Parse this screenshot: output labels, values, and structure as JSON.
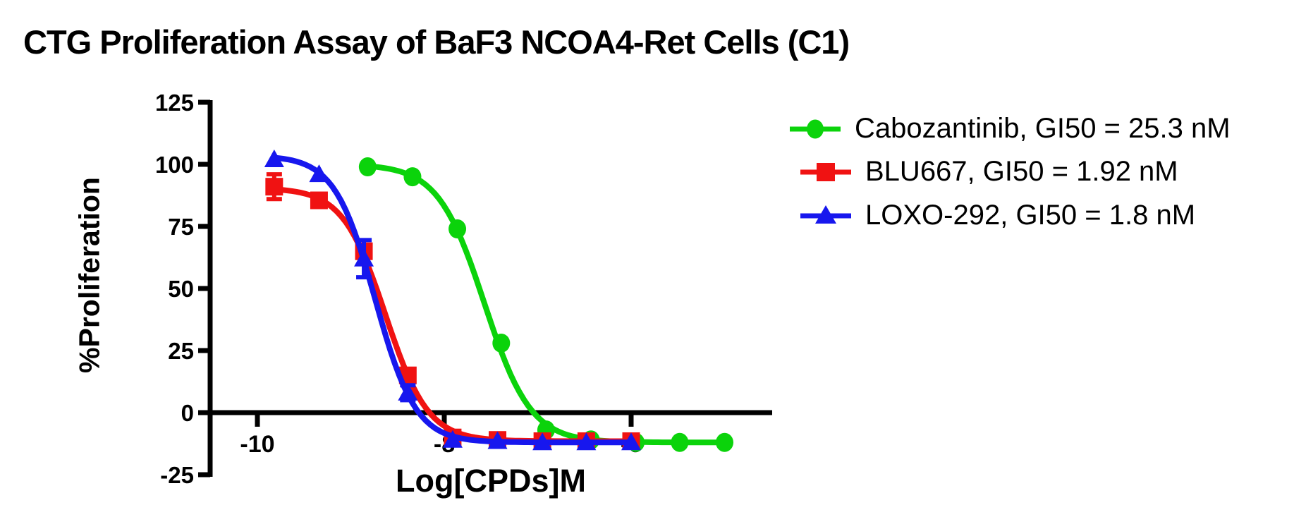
{
  "title": "CTG Proliferation Assay of BaF3 NCOA4-Ret Cells (C1)",
  "colors": {
    "cabozantinib": "#0bd30b",
    "blu667": "#f01212",
    "loxo292": "#1717ee",
    "axis": "#000000",
    "background": "#ffffff"
  },
  "chart_data": {
    "type": "line",
    "title": "CTG Proliferation Assay of BaF3 NCOA4-Ret Cells (C1)",
    "xlabel": "Log[CPDs]M",
    "ylabel": "%Proliferation",
    "xlim": [
      -10.5,
      -4.5
    ],
    "ylim": [
      -25,
      125
    ],
    "x_ticks": [
      -10,
      -8,
      -6
    ],
    "y_ticks": [
      125,
      100,
      75,
      50,
      25,
      0,
      -25
    ],
    "grid": false,
    "legend_position": "right",
    "series": [
      {
        "name": "Cabozantinib, GI50 = 25.3 nM",
        "compound": "Cabozantinib",
        "gi50": "25.3 nM",
        "marker": "circle",
        "color": "#0bd30b",
        "x": [
          -8.82,
          -8.34,
          -7.86,
          -7.39,
          -6.91,
          -6.43,
          -5.95,
          -5.48,
          -5.0
        ],
        "y": [
          99,
          95,
          74,
          28,
          -7,
          -11,
          -12,
          -12,
          -12
        ],
        "err": [
          0,
          0,
          0,
          0,
          0,
          0,
          0,
          0,
          0
        ],
        "fit": {
          "top": 100,
          "bottom": -12,
          "logec50": -7.57,
          "hill": 1.75
        }
      },
      {
        "name": "BLU667, GI50 = 1.92 nM",
        "compound": "BLU667",
        "gi50": "1.92 nM",
        "marker": "square",
        "color": "#f01212",
        "x": [
          -9.82,
          -9.34,
          -8.86,
          -8.39,
          -7.91,
          -7.43,
          -6.95,
          -6.48,
          -6.0
        ],
        "y": [
          91,
          85.5,
          65,
          15,
          -10,
          -11,
          -11.5,
          -11.5,
          -11.5
        ],
        "err": [
          5,
          0,
          0,
          0,
          0,
          0,
          0,
          0,
          0
        ],
        "fit": {
          "top": 90.5,
          "bottom": -11.5,
          "logec50": -8.63,
          "hill": 1.9
        }
      },
      {
        "name": "LOXO-292, GI50 = 1.8 nM",
        "compound": "LOXO-292",
        "gi50": "1.8 nM",
        "marker": "triangle",
        "color": "#1717ee",
        "x": [
          -9.82,
          -9.34,
          -8.86,
          -8.39,
          -7.91,
          -7.43,
          -6.95,
          -6.48,
          -6.0
        ],
        "y": [
          102,
          96,
          62,
          8,
          -11,
          -11.5,
          -12,
          -12,
          -12
        ],
        "err": [
          0,
          0,
          7.5,
          3,
          0,
          0,
          0,
          0,
          0
        ],
        "fit": {
          "top": 103.5,
          "bottom": -12,
          "logec50": -8.74,
          "hill": 2.0
        }
      }
    ]
  }
}
